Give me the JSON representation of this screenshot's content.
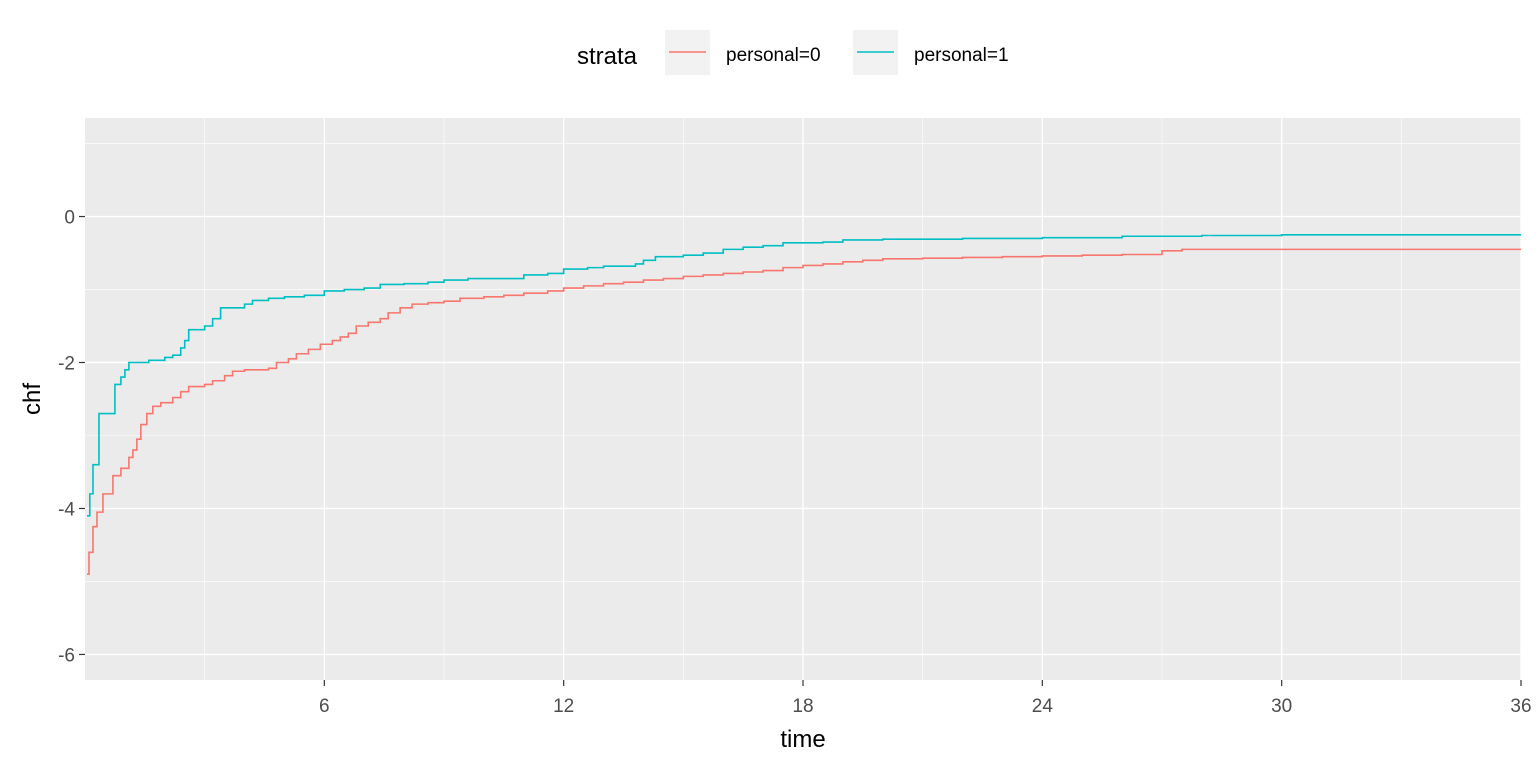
{
  "chart_data": {
    "type": "line",
    "xlabel": "time",
    "ylabel": "chf",
    "xlim": [
      0,
      36
    ],
    "ylim": [
      -6.35,
      1.35
    ],
    "x_ticks": [
      6,
      12,
      18,
      24,
      30,
      36
    ],
    "y_ticks": [
      0,
      -2,
      -4,
      -6
    ],
    "y_tick_labels": [
      "0",
      "-2",
      "-4",
      "-6"
    ],
    "grid": true,
    "legend_position": "top",
    "legend_title": "strata",
    "series": [
      {
        "name": "personal=0",
        "color": "#F8766D",
        "points": [
          [
            0.05,
            -4.9
          ],
          [
            0.1,
            -4.6
          ],
          [
            0.2,
            -4.25
          ],
          [
            0.3,
            -4.05
          ],
          [
            0.45,
            -3.8
          ],
          [
            0.7,
            -3.55
          ],
          [
            0.9,
            -3.45
          ],
          [
            1.1,
            -3.3
          ],
          [
            1.2,
            -3.2
          ],
          [
            1.3,
            -3.05
          ],
          [
            1.4,
            -2.85
          ],
          [
            1.55,
            -2.7
          ],
          [
            1.7,
            -2.6
          ],
          [
            1.9,
            -2.55
          ],
          [
            2.2,
            -2.48
          ],
          [
            2.4,
            -2.4
          ],
          [
            2.6,
            -2.33
          ],
          [
            3.0,
            -2.3
          ],
          [
            3.2,
            -2.25
          ],
          [
            3.5,
            -2.18
          ],
          [
            3.7,
            -2.12
          ],
          [
            4.0,
            -2.1
          ],
          [
            4.6,
            -2.08
          ],
          [
            4.8,
            -2.0
          ],
          [
            5.1,
            -1.95
          ],
          [
            5.3,
            -1.88
          ],
          [
            5.6,
            -1.82
          ],
          [
            5.9,
            -1.75
          ],
          [
            6.2,
            -1.7
          ],
          [
            6.4,
            -1.65
          ],
          [
            6.6,
            -1.6
          ],
          [
            6.8,
            -1.5
          ],
          [
            7.1,
            -1.45
          ],
          [
            7.4,
            -1.4
          ],
          [
            7.6,
            -1.32
          ],
          [
            7.9,
            -1.25
          ],
          [
            8.2,
            -1.2
          ],
          [
            8.6,
            -1.18
          ],
          [
            9.0,
            -1.16
          ],
          [
            9.4,
            -1.12
          ],
          [
            10.0,
            -1.1
          ],
          [
            10.5,
            -1.08
          ],
          [
            11.0,
            -1.05
          ],
          [
            11.6,
            -1.02
          ],
          [
            12.0,
            -0.98
          ],
          [
            12.5,
            -0.95
          ],
          [
            13.0,
            -0.92
          ],
          [
            13.5,
            -0.9
          ],
          [
            14.0,
            -0.87
          ],
          [
            14.5,
            -0.85
          ],
          [
            15.0,
            -0.82
          ],
          [
            15.5,
            -0.8
          ],
          [
            16.0,
            -0.78
          ],
          [
            16.5,
            -0.76
          ],
          [
            17.0,
            -0.74
          ],
          [
            17.5,
            -0.7
          ],
          [
            18.0,
            -0.67
          ],
          [
            18.5,
            -0.65
          ],
          [
            19.0,
            -0.62
          ],
          [
            19.5,
            -0.6
          ],
          [
            20.0,
            -0.58
          ],
          [
            21.0,
            -0.57
          ],
          [
            22.0,
            -0.56
          ],
          [
            23.0,
            -0.55
          ],
          [
            24.0,
            -0.54
          ],
          [
            25.0,
            -0.53
          ],
          [
            26.0,
            -0.52
          ],
          [
            27.0,
            -0.47
          ],
          [
            27.5,
            -0.45
          ],
          [
            30.0,
            -0.45
          ],
          [
            36.0,
            -0.45
          ]
        ]
      },
      {
        "name": "personal=1",
        "color": "#00BFC4",
        "points": [
          [
            0.05,
            -4.1
          ],
          [
            0.12,
            -3.8
          ],
          [
            0.2,
            -3.4
          ],
          [
            0.35,
            -2.7
          ],
          [
            0.5,
            -2.7
          ],
          [
            0.6,
            -2.7
          ],
          [
            0.7,
            -2.7
          ],
          [
            0.75,
            -2.3
          ],
          [
            0.9,
            -2.2
          ],
          [
            1.0,
            -2.1
          ],
          [
            1.1,
            -2.0
          ],
          [
            1.3,
            -2.0
          ],
          [
            1.6,
            -1.97
          ],
          [
            2.0,
            -1.93
          ],
          [
            2.2,
            -1.9
          ],
          [
            2.4,
            -1.8
          ],
          [
            2.5,
            -1.7
          ],
          [
            2.6,
            -1.55
          ],
          [
            2.9,
            -1.55
          ],
          [
            3.0,
            -1.5
          ],
          [
            3.2,
            -1.4
          ],
          [
            3.4,
            -1.25
          ],
          [
            3.8,
            -1.25
          ],
          [
            4.0,
            -1.2
          ],
          [
            4.2,
            -1.15
          ],
          [
            4.6,
            -1.12
          ],
          [
            5.0,
            -1.1
          ],
          [
            5.5,
            -1.08
          ],
          [
            6.0,
            -1.02
          ],
          [
            6.5,
            -1.0
          ],
          [
            7.0,
            -0.98
          ],
          [
            7.4,
            -0.93
          ],
          [
            8.0,
            -0.92
          ],
          [
            8.6,
            -0.9
          ],
          [
            9.0,
            -0.87
          ],
          [
            9.6,
            -0.85
          ],
          [
            10.6,
            -0.85
          ],
          [
            11.0,
            -0.8
          ],
          [
            11.6,
            -0.78
          ],
          [
            12.0,
            -0.72
          ],
          [
            12.6,
            -0.7
          ],
          [
            13.0,
            -0.68
          ],
          [
            13.8,
            -0.65
          ],
          [
            14.0,
            -0.6
          ],
          [
            14.3,
            -0.55
          ],
          [
            15.0,
            -0.53
          ],
          [
            15.5,
            -0.5
          ],
          [
            16.0,
            -0.45
          ],
          [
            16.5,
            -0.42
          ],
          [
            17.0,
            -0.4
          ],
          [
            17.5,
            -0.36
          ],
          [
            18.5,
            -0.35
          ],
          [
            19.0,
            -0.32
          ],
          [
            20.0,
            -0.31
          ],
          [
            22.0,
            -0.3
          ],
          [
            24.0,
            -0.29
          ],
          [
            26.0,
            -0.27
          ],
          [
            28.0,
            -0.26
          ],
          [
            30.0,
            -0.25
          ],
          [
            36.0,
            -0.25
          ]
        ]
      }
    ]
  }
}
